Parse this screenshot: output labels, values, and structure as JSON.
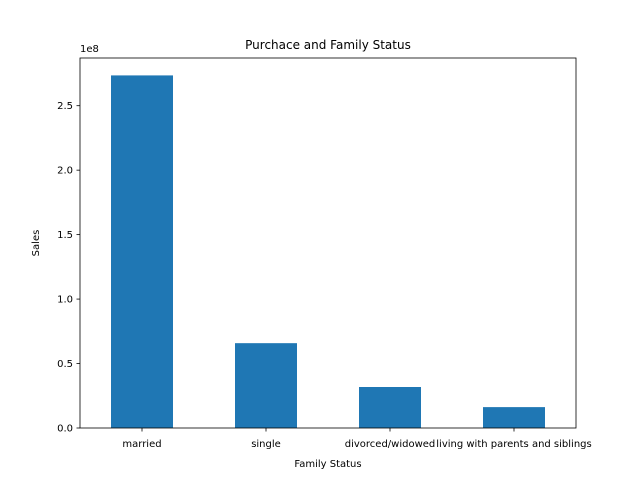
{
  "chart_data": {
    "type": "bar",
    "title": "Purchace and Family Status",
    "xlabel": "Family Status",
    "ylabel": "Sales",
    "y_offset_label": "1e8",
    "categories": [
      "married",
      "single",
      "divorced/widowed",
      "living with parents and siblings"
    ],
    "values": [
      273500000,
      65800000,
      31800000,
      16200000
    ],
    "ylim": [
      0,
      287000000
    ],
    "yticks": [
      0,
      50000000,
      100000000,
      150000000,
      200000000,
      250000000
    ],
    "ytick_labels": [
      "0.0",
      "0.5",
      "1.0",
      "1.5",
      "2.0",
      "2.5"
    ],
    "bar_color": "#1f77b4",
    "grid": false,
    "legend": "none"
  }
}
